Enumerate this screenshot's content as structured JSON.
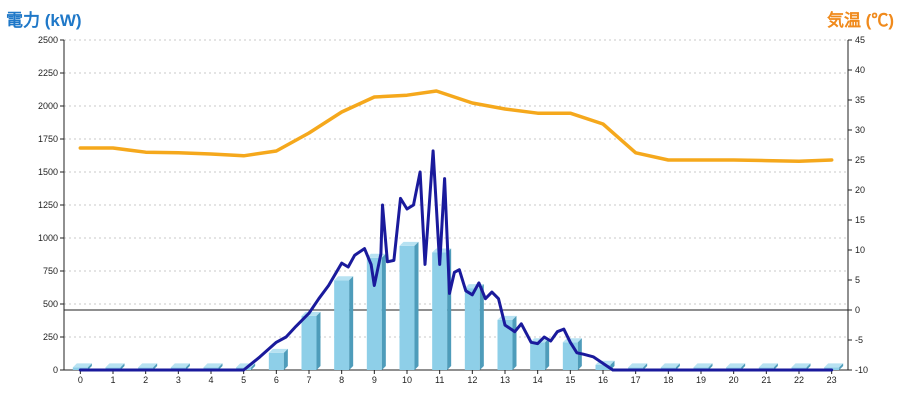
{
  "chart_data": {
    "type": "bar",
    "left_axis_label": "電力 (kW)",
    "right_axis_label": "気温 (℃)",
    "x": [
      0,
      1,
      2,
      3,
      4,
      5,
      6,
      7,
      8,
      9,
      10,
      11,
      12,
      13,
      14,
      15,
      16,
      17,
      18,
      19,
      20,
      21,
      22,
      23
    ],
    "ylim_left": [
      0,
      2500
    ],
    "yticks_left": [
      0,
      250,
      500,
      750,
      1000,
      1250,
      1500,
      1750,
      2000,
      2250,
      2500
    ],
    "ylim_right": [
      -10,
      45
    ],
    "yticks_right": [
      -10,
      -5,
      0,
      5,
      10,
      15,
      20,
      25,
      30,
      35,
      40,
      45
    ],
    "grid": true,
    "bars": {
      "values": [
        20,
        20,
        20,
        20,
        20,
        20,
        130,
        410,
        680,
        850,
        940,
        890,
        620,
        380,
        210,
        210,
        40,
        20,
        20,
        20,
        20,
        20,
        20,
        20
      ],
      "color": "#8ecfe8"
    },
    "power_line": {
      "color": "#1a1a9c",
      "points": [
        [
          0,
          0
        ],
        [
          1,
          0
        ],
        [
          2,
          0
        ],
        [
          3,
          0
        ],
        [
          4,
          0
        ],
        [
          5,
          0
        ],
        [
          5.5,
          100
        ],
        [
          6,
          210
        ],
        [
          6.3,
          250
        ],
        [
          6.6,
          330
        ],
        [
          7,
          430
        ],
        [
          7.3,
          540
        ],
        [
          7.6,
          640
        ],
        [
          8,
          810
        ],
        [
          8.2,
          780
        ],
        [
          8.4,
          870
        ],
        [
          8.7,
          920
        ],
        [
          8.9,
          800
        ],
        [
          9,
          640
        ],
        [
          9.2,
          880
        ],
        [
          9.25,
          1250
        ],
        [
          9.4,
          820
        ],
        [
          9.6,
          830
        ],
        [
          9.8,
          1300
        ],
        [
          10,
          1220
        ],
        [
          10.2,
          1250
        ],
        [
          10.4,
          1500
        ],
        [
          10.55,
          800
        ],
        [
          10.8,
          1660
        ],
        [
          11,
          800
        ],
        [
          11.15,
          1450
        ],
        [
          11.3,
          580
        ],
        [
          11.45,
          740
        ],
        [
          11.6,
          760
        ],
        [
          11.8,
          600
        ],
        [
          12,
          570
        ],
        [
          12.2,
          660
        ],
        [
          12.4,
          540
        ],
        [
          12.6,
          590
        ],
        [
          12.8,
          540
        ],
        [
          13,
          340
        ],
        [
          13.3,
          290
        ],
        [
          13.5,
          350
        ],
        [
          13.8,
          210
        ],
        [
          14,
          200
        ],
        [
          14.2,
          250
        ],
        [
          14.4,
          220
        ],
        [
          14.6,
          290
        ],
        [
          14.8,
          310
        ],
        [
          15,
          210
        ],
        [
          15.2,
          130
        ],
        [
          15.4,
          120
        ],
        [
          15.7,
          100
        ],
        [
          16,
          50
        ],
        [
          16.3,
          0
        ],
        [
          17,
          0
        ],
        [
          18,
          0
        ],
        [
          19,
          0
        ],
        [
          20,
          0
        ],
        [
          21,
          0
        ],
        [
          22,
          0
        ],
        [
          23,
          0
        ]
      ]
    },
    "temperature_line": {
      "color": "#f5a81c",
      "points": [
        [
          0,
          27
        ],
        [
          1,
          27
        ],
        [
          2,
          26.3
        ],
        [
          3,
          26.2
        ],
        [
          4,
          26
        ],
        [
          5,
          25.7
        ],
        [
          6,
          26.5
        ],
        [
          7,
          29.5
        ],
        [
          8,
          33
        ],
        [
          9,
          35.5
        ],
        [
          10,
          35.8
        ],
        [
          10.9,
          36.5
        ],
        [
          12,
          34.5
        ],
        [
          13,
          33.5
        ],
        [
          14,
          32.8
        ],
        [
          15,
          32.8
        ],
        [
          16,
          31
        ],
        [
          17,
          26.2
        ],
        [
          18,
          25
        ],
        [
          19,
          25
        ],
        [
          20,
          25
        ],
        [
          21,
          24.9
        ],
        [
          22,
          24.8
        ],
        [
          23,
          25
        ]
      ]
    }
  }
}
